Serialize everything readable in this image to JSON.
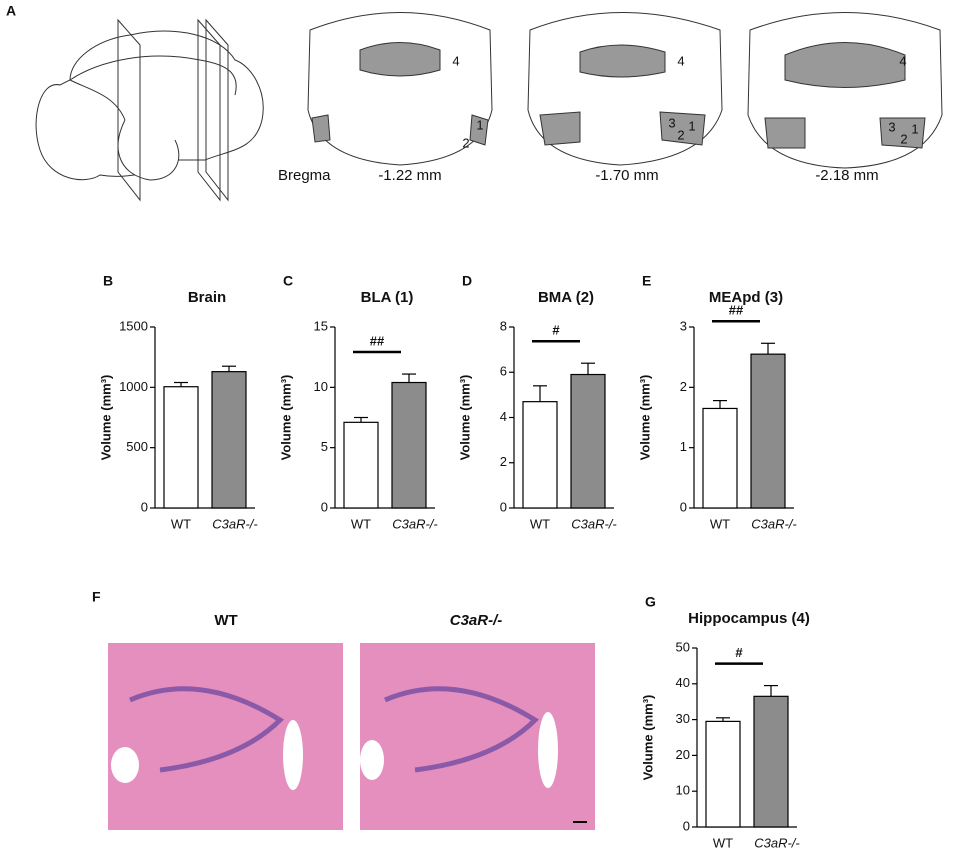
{
  "panel_a": {
    "panel": "A",
    "bregma": "Bregma",
    "sections": [
      {
        "label": "-1.22 mm",
        "regions": [
          "4",
          "1",
          "2"
        ]
      },
      {
        "label": "-1.70 mm",
        "regions": [
          "4",
          "3",
          "2",
          "1"
        ]
      },
      {
        "label": "-2.18 mm",
        "regions": [
          "4",
          "3",
          "2",
          "1"
        ]
      }
    ]
  },
  "panel_f": {
    "panel": "F",
    "images": [
      {
        "label": "WT"
      },
      {
        "label": "C3aR-/-"
      }
    ]
  },
  "chart_data": [
    {
      "type": "bar",
      "panel": "B",
      "title": "Brain",
      "y_label": "Volume (mm³)",
      "categories": [
        "WT",
        "C3aR-/-"
      ],
      "values": [
        1005,
        1130
      ],
      "errors": [
        35,
        45
      ],
      "colors": [
        "#ffffff",
        "#8c8c8c"
      ],
      "ylim": [
        0,
        1500
      ],
      "yticks": [
        0,
        500,
        1000,
        1500
      ]
    },
    {
      "type": "bar",
      "panel": "C",
      "title": "BLA (1)",
      "y_label": "Volume (mm³)",
      "categories": [
        "WT",
        "C3aR-/-"
      ],
      "values": [
        7.1,
        10.4
      ],
      "errors": [
        0.4,
        0.7
      ],
      "colors": [
        "#ffffff",
        "#8c8c8c"
      ],
      "ylim": [
        0,
        15
      ],
      "yticks": [
        0,
        5,
        10,
        15
      ],
      "annotation": "##"
    },
    {
      "type": "bar",
      "panel": "D",
      "title": "BMA (2)",
      "y_label": "Volume (mm³)",
      "categories": [
        "WT",
        "C3aR-/-"
      ],
      "values": [
        4.7,
        5.9
      ],
      "errors": [
        0.7,
        0.5
      ],
      "colors": [
        "#ffffff",
        "#8c8c8c"
      ],
      "ylim": [
        0,
        8
      ],
      "yticks": [
        0,
        2,
        4,
        6,
        8
      ],
      "annotation": "#"
    },
    {
      "type": "bar",
      "panel": "E",
      "title": "MEApd (3)",
      "y_label": "Volume (mm³)",
      "categories": [
        "WT",
        "C3aR-/-"
      ],
      "values": [
        1.65,
        2.55
      ],
      "errors": [
        0.13,
        0.18
      ],
      "colors": [
        "#ffffff",
        "#8c8c8c"
      ],
      "ylim": [
        0,
        3
      ],
      "yticks": [
        0,
        1,
        2,
        3
      ],
      "annotation": "##"
    },
    {
      "type": "bar",
      "panel": "G",
      "title": "Hippocampus (4)",
      "y_label": "Volume (mm³)",
      "categories": [
        "WT",
        "C3aR-/-"
      ],
      "values": [
        29.5,
        36.5
      ],
      "errors": [
        1,
        3
      ],
      "colors": [
        "#ffffff",
        "#8c8c8c"
      ],
      "ylim": [
        0,
        50
      ],
      "yticks": [
        0,
        10,
        20,
        30,
        40,
        50
      ],
      "annotation": "#"
    }
  ]
}
